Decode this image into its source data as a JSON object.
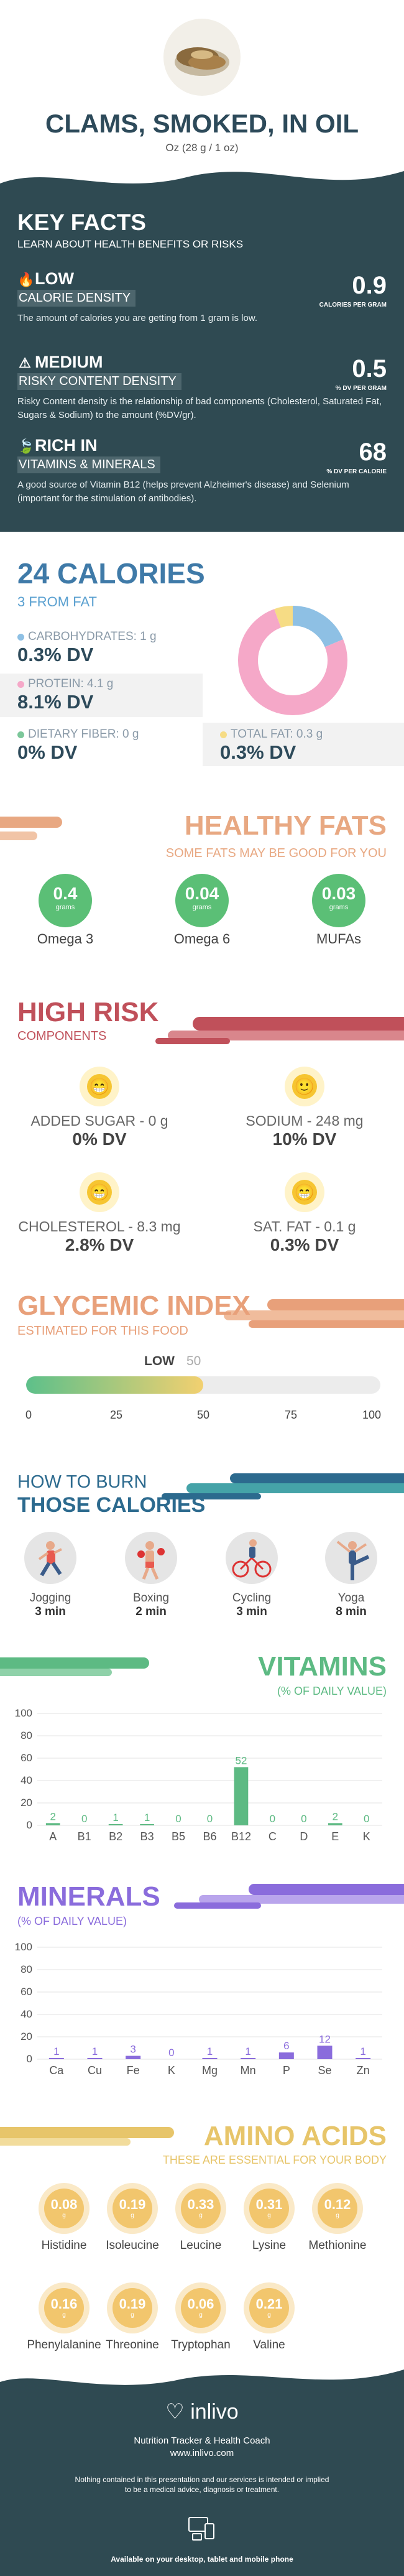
{
  "header": {
    "title": "CLAMS, SMOKED, IN OIL",
    "serving": "Oz (28 g / 1 oz)"
  },
  "key_facts": {
    "title": "KEY FACTS",
    "subtitle": "LEARN ABOUT HEALTH BENEFITS OR RISKS",
    "items": [
      {
        "level": "LOW",
        "label": "CALORIE DENSITY",
        "desc": "The amount of calories you are getting from 1 gram is low.",
        "value": "0.9",
        "unit": "CALORIES PER GRAM",
        "icon": "flame-icon"
      },
      {
        "level": "MEDIUM",
        "label": "RISKY CONTENT DENSITY",
        "desc": "Risky Content density is the relationship of bad components (Cholesterol, Saturated Fat, Sugars & Sodium) to the amount (%DV/gr).",
        "value": "0.5",
        "unit": "% DV PER GRAM",
        "icon": "warning-icon"
      },
      {
        "level": "RICH IN",
        "label": "VITAMINS & MINERALS",
        "desc": "A good source of Vitamin B12 (helps prevent Alzheimer's disease) and Selenium (important for the stimulation of antibodies).",
        "value": "68",
        "unit": "% DV PER CALORIE",
        "icon": "leaf-icon"
      }
    ]
  },
  "calories": {
    "title": "24 CALORIES",
    "from_fat": "3 FROM FAT",
    "macros": [
      {
        "name": "CARBOHYDRATES: 1 g",
        "dv": "0.3% DV",
        "color": "#8ec0e4"
      },
      {
        "name": "PROTEIN: 4.1 g",
        "dv": "8.1% DV",
        "color": "#f5a8c8"
      },
      {
        "name": "DIETARY FIBER: 0 g",
        "dv": "0% DV",
        "color": "#7cc79a"
      },
      {
        "name": "TOTAL FAT: 0.3 g",
        "dv": "0.3% DV",
        "color": "#f6dc85"
      }
    ],
    "donut": [
      {
        "name": "carbohydrates",
        "value": 17,
        "color": "#8ec0e4"
      },
      {
        "name": "protein",
        "value": 69,
        "color": "#f5a8c8"
      },
      {
        "name": "fat",
        "value": 5,
        "color": "#f6dc85"
      }
    ]
  },
  "healthy_fats": {
    "title": "HEALTHY FATS",
    "subtitle": "SOME FATS MAY BE GOOD FOR YOU",
    "unit": "grams",
    "items": [
      {
        "value": "0.4",
        "name": "Omega 3"
      },
      {
        "value": "0.04",
        "name": "Omega 6"
      },
      {
        "value": "0.03",
        "name": "MUFAs"
      }
    ]
  },
  "high_risk": {
    "title": "HIGH RISK",
    "subtitle": "COMPONENTS",
    "items": [
      {
        "name": "ADDED SUGAR - 0 g",
        "dv": "0% DV"
      },
      {
        "name": "SODIUM - 248 mg",
        "dv": "10% DV"
      },
      {
        "name": "CHOLESTEROL - 8.3 mg",
        "dv": "2.8% DV"
      },
      {
        "name": "SAT. FAT - 0.1 g",
        "dv": "0.3% DV"
      }
    ]
  },
  "glycemic": {
    "title": "GLYCEMIC INDEX",
    "subtitle": "ESTIMATED FOR THIS FOOD",
    "level": "LOW",
    "value": "50",
    "fill_fraction": 0.5,
    "ticks": [
      "0",
      "25",
      "50",
      "75",
      "100"
    ]
  },
  "burn": {
    "title1": "HOW TO BURN",
    "title2": "THOSE CALORIES",
    "items": [
      {
        "name": "Jogging",
        "time": "3 min",
        "icon": "jogging-icon"
      },
      {
        "name": "Boxing",
        "time": "2 min",
        "icon": "boxing-icon"
      },
      {
        "name": "Cycling",
        "time": "3 min",
        "icon": "cycling-icon"
      },
      {
        "name": "Yoga",
        "time": "8 min",
        "icon": "yoga-icon"
      }
    ]
  },
  "vitamins": {
    "title": "VITAMINS",
    "subtitle": "(% OF DAILY VALUE)",
    "chart_data": {
      "type": "bar",
      "categories": [
        "A",
        "B1",
        "B2",
        "B3",
        "B5",
        "B6",
        "B12",
        "C",
        "D",
        "E",
        "K"
      ],
      "values": [
        2,
        0,
        1,
        1,
        0,
        0,
        52,
        0,
        0,
        2,
        0
      ],
      "ylim": [
        0,
        100
      ],
      "yticks": [
        "0",
        "20",
        "40",
        "60",
        "80",
        "100"
      ],
      "color": "#5dba83"
    }
  },
  "minerals": {
    "title": "MINERALS",
    "subtitle": "(% OF DAILY VALUE)",
    "chart_data": {
      "type": "bar",
      "categories": [
        "Ca",
        "Cu",
        "Fe",
        "K",
        "Mg",
        "Mn",
        "P",
        "Se",
        "Zn"
      ],
      "values": [
        1,
        1,
        3,
        0,
        1,
        1,
        6,
        12,
        1
      ],
      "ylim": [
        0,
        100
      ],
      "yticks": [
        "0",
        "20",
        "40",
        "60",
        "80",
        "100"
      ],
      "color": "#8a6cdc"
    }
  },
  "amino": {
    "title": "AMINO ACIDS",
    "subtitle": "THESE ARE ESSENTIAL FOR YOUR BODY",
    "unit": "g",
    "items": [
      {
        "value": "0.08",
        "name": "Histidine"
      },
      {
        "value": "0.19",
        "name": "Isoleucine"
      },
      {
        "value": "0.33",
        "name": "Leucine"
      },
      {
        "value": "0.31",
        "name": "Lysine"
      },
      {
        "value": "0.12",
        "name": "Methionine"
      },
      {
        "value": "0.16",
        "name": "Phenylalanine"
      },
      {
        "value": "0.19",
        "name": "Threonine"
      },
      {
        "value": "0.06",
        "name": "Tryptophan"
      },
      {
        "value": "0.21",
        "name": "Valine"
      }
    ]
  },
  "footer": {
    "logo": "inlivo",
    "tagline": "Nutrition Tracker & Health Coach",
    "url": "www.inlivo.com",
    "disclaimer1": "Nothing contained in this presentation and our services is intended or implied",
    "disclaimer2": "to be a medical advice, diagnosis or treatment.",
    "available": "Available on your desktop, tablet and mobile phone"
  }
}
